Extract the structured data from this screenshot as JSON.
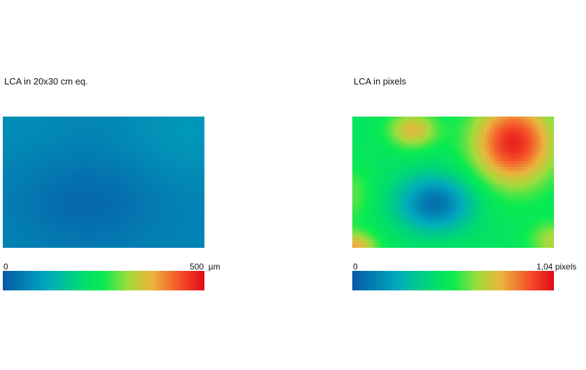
{
  "chart_data": [
    {
      "type": "heatmap",
      "title": "LCA in 20x30 cm eq.",
      "colorbar": {
        "min_label": "0",
        "max_label": "500",
        "unit": "µm",
        "min": 0,
        "max": 500
      },
      "field": {
        "base": 60,
        "blobs": [
          {
            "cx": 0.42,
            "cy": 0.66,
            "sx": 0.35,
            "sy": 0.35,
            "amp": -38
          },
          {
            "cx": 0.92,
            "cy": 0.12,
            "sx": 0.3,
            "sy": 0.35,
            "amp": 25
          },
          {
            "cx": 0.0,
            "cy": 0.02,
            "sx": 0.3,
            "sy": 0.3,
            "amp": 12
          }
        ]
      }
    },
    {
      "type": "heatmap",
      "title": "LCA in pixels",
      "colorbar": {
        "min_label": "0",
        "max_label": "1,04",
        "unit": "pixels",
        "min": 0,
        "max": 1.04
      },
      "field": {
        "base": 0.47,
        "blobs": [
          {
            "cx": 0.8,
            "cy": 0.2,
            "sx": 0.2,
            "sy": 0.32,
            "amp": 0.52
          },
          {
            "cx": 0.41,
            "cy": 0.66,
            "sx": 0.19,
            "sy": 0.22,
            "amp": -0.4
          },
          {
            "cx": 0.3,
            "cy": 0.1,
            "sx": 0.12,
            "sy": 0.14,
            "amp": 0.28
          },
          {
            "cx": 0.0,
            "cy": 1.0,
            "sx": 0.12,
            "sy": 0.12,
            "amp": 0.32
          },
          {
            "cx": 0.0,
            "cy": 0.6,
            "sx": 0.1,
            "sy": 0.22,
            "amp": 0.12
          },
          {
            "cx": 1.0,
            "cy": 0.95,
            "sx": 0.12,
            "sy": 0.15,
            "amp": 0.2
          }
        ]
      }
    }
  ]
}
